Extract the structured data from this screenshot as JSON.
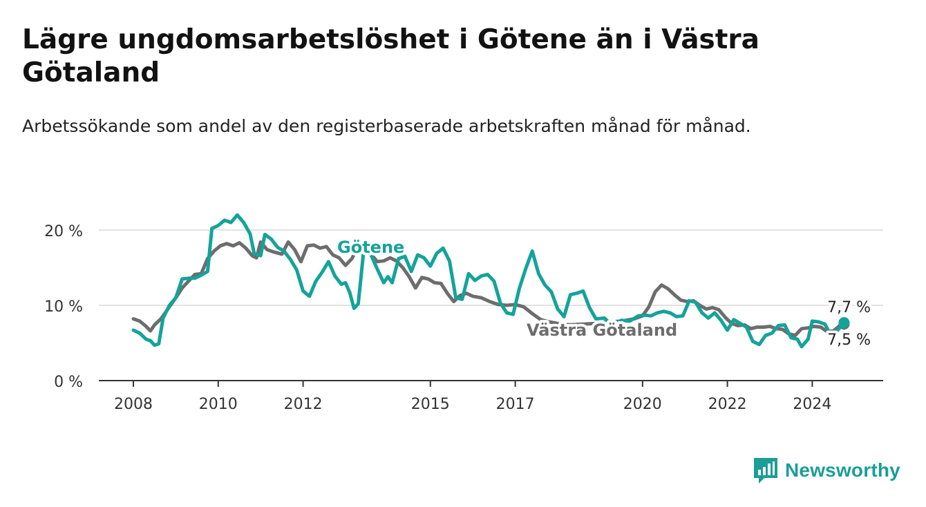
{
  "title": "Lägre ungdomsarbetslöshet i Götene än i Västra Götaland",
  "subtitle": "Arbetssökande som andel av den registerbaserade arbetskraften månad för månad.",
  "brand": {
    "name": "Newsworthy",
    "color": "#1a9e97",
    "icon": "bar-chart-logo-icon"
  },
  "colors": {
    "gotene": "#14a39a",
    "vastra_gotaland": "#6d6d6d",
    "grid": "#d9d9d9",
    "axis": "#333333"
  },
  "chart_data": {
    "type": "line",
    "xlabel": "",
    "ylabel": "",
    "ylim": [
      0,
      22
    ],
    "xlim": [
      2008,
      2026
    ],
    "y_ticks": [
      {
        "value": 0,
        "label": "0 %"
      },
      {
        "value": 10,
        "label": "10 %"
      },
      {
        "value": 20,
        "label": "20 %"
      }
    ],
    "x_ticks": [
      {
        "value": 2008,
        "label": "2008"
      },
      {
        "value": 2010,
        "label": "2010"
      },
      {
        "value": 2012,
        "label": "2012"
      },
      {
        "value": 2015,
        "label": "2015"
      },
      {
        "value": 2017,
        "label": "2017"
      },
      {
        "value": 2020,
        "label": "2020"
      },
      {
        "value": 2022,
        "label": "2022"
      },
      {
        "value": 2024,
        "label": "2024"
      }
    ],
    "grid": true,
    "series": [
      {
        "name": "Västra Götaland",
        "color": "#6d6d6d",
        "label": "Västra Götaland",
        "end_label": "7,5 %",
        "points": [
          [
            2008.0,
            8.2
          ],
          [
            2008.15,
            7.9
          ],
          [
            2008.3,
            7.2
          ],
          [
            2008.4,
            6.6
          ],
          [
            2008.5,
            7.4
          ],
          [
            2008.65,
            8.2
          ],
          [
            2008.8,
            9.4
          ],
          [
            2009.0,
            11.0
          ],
          [
            2009.15,
            12.3
          ],
          [
            2009.3,
            13.2
          ],
          [
            2009.45,
            14.1
          ],
          [
            2009.6,
            14.2
          ],
          [
            2009.75,
            16.2
          ],
          [
            2009.9,
            17.2
          ],
          [
            2010.05,
            17.9
          ],
          [
            2010.2,
            18.2
          ],
          [
            2010.35,
            17.9
          ],
          [
            2010.5,
            18.3
          ],
          [
            2010.65,
            17.6
          ],
          [
            2010.8,
            16.6
          ],
          [
            2010.9,
            16.3
          ],
          [
            2011.0,
            18.4
          ],
          [
            2011.15,
            17.4
          ],
          [
            2011.3,
            17.1
          ],
          [
            2011.5,
            16.8
          ],
          [
            2011.65,
            18.4
          ],
          [
            2011.8,
            17.4
          ],
          [
            2011.95,
            15.8
          ],
          [
            2012.1,
            17.9
          ],
          [
            2012.25,
            18.0
          ],
          [
            2012.4,
            17.6
          ],
          [
            2012.55,
            17.8
          ],
          [
            2012.7,
            16.7
          ],
          [
            2012.85,
            16.3
          ],
          [
            2013.0,
            15.3
          ],
          [
            2013.15,
            16.2
          ],
          [
            2013.3,
            17.8
          ],
          [
            2013.45,
            17.2
          ],
          [
            2013.6,
            16.8
          ],
          [
            2013.75,
            15.8
          ],
          [
            2013.9,
            15.9
          ],
          [
            2014.05,
            16.3
          ],
          [
            2014.2,
            15.9
          ],
          [
            2014.35,
            15.0
          ],
          [
            2014.5,
            13.8
          ],
          [
            2014.65,
            12.3
          ],
          [
            2014.8,
            13.7
          ],
          [
            2014.95,
            13.5
          ],
          [
            2015.1,
            13.0
          ],
          [
            2015.25,
            12.9
          ],
          [
            2015.4,
            11.6
          ],
          [
            2015.55,
            10.5
          ],
          [
            2015.7,
            11.3
          ],
          [
            2015.85,
            11.6
          ],
          [
            2016.0,
            11.2
          ],
          [
            2016.2,
            11.0
          ],
          [
            2016.4,
            10.5
          ],
          [
            2016.6,
            10.1
          ],
          [
            2016.8,
            10.0
          ],
          [
            2017.0,
            10.1
          ],
          [
            2017.2,
            9.8
          ],
          [
            2017.4,
            8.9
          ],
          [
            2017.6,
            8.1
          ],
          [
            2017.8,
            7.8
          ],
          [
            2018.0,
            7.6
          ],
          [
            2018.3,
            7.4
          ],
          [
            2018.6,
            7.5
          ],
          [
            2018.9,
            7.6
          ],
          [
            2019.2,
            7.8
          ],
          [
            2019.5,
            7.9
          ],
          [
            2019.8,
            8.2
          ],
          [
            2020.0,
            8.6
          ],
          [
            2020.15,
            9.8
          ],
          [
            2020.3,
            11.8
          ],
          [
            2020.45,
            12.7
          ],
          [
            2020.6,
            12.2
          ],
          [
            2020.75,
            11.4
          ],
          [
            2020.9,
            10.7
          ],
          [
            2021.05,
            10.5
          ],
          [
            2021.2,
            10.6
          ],
          [
            2021.35,
            10.0
          ],
          [
            2021.5,
            9.5
          ],
          [
            2021.65,
            9.7
          ],
          [
            2021.8,
            9.4
          ],
          [
            2021.95,
            8.4
          ],
          [
            2022.1,
            7.6
          ],
          [
            2022.25,
            7.3
          ],
          [
            2022.4,
            7.4
          ],
          [
            2022.55,
            6.9
          ],
          [
            2022.7,
            7.1
          ],
          [
            2022.85,
            7.1
          ],
          [
            2023.0,
            7.2
          ],
          [
            2023.15,
            6.9
          ],
          [
            2023.3,
            6.8
          ],
          [
            2023.45,
            6.2
          ],
          [
            2023.6,
            6.0
          ],
          [
            2023.75,
            6.9
          ],
          [
            2023.9,
            7.0
          ],
          [
            2024.05,
            7.2
          ],
          [
            2024.2,
            7.1
          ],
          [
            2024.35,
            6.5
          ],
          [
            2024.5,
            6.6
          ],
          [
            2024.65,
            7.3
          ],
          [
            2024.75,
            7.5
          ]
        ]
      },
      {
        "name": "Götene",
        "color": "#14a39a",
        "label": "Götene",
        "end_label": "7,7 %",
        "points": [
          [
            2008.0,
            6.7
          ],
          [
            2008.15,
            6.3
          ],
          [
            2008.3,
            5.5
          ],
          [
            2008.4,
            5.3
          ],
          [
            2008.5,
            4.7
          ],
          [
            2008.6,
            4.9
          ],
          [
            2008.7,
            8.3
          ],
          [
            2008.85,
            10.0
          ],
          [
            2009.0,
            11.0
          ],
          [
            2009.15,
            13.5
          ],
          [
            2009.3,
            13.6
          ],
          [
            2009.45,
            13.6
          ],
          [
            2009.6,
            14.0
          ],
          [
            2009.75,
            14.5
          ],
          [
            2009.85,
            20.2
          ],
          [
            2010.0,
            20.6
          ],
          [
            2010.15,
            21.3
          ],
          [
            2010.3,
            21.0
          ],
          [
            2010.45,
            22.0
          ],
          [
            2010.6,
            21.0
          ],
          [
            2010.75,
            19.5
          ],
          [
            2010.85,
            16.8
          ],
          [
            2011.0,
            16.6
          ],
          [
            2011.1,
            19.4
          ],
          [
            2011.25,
            18.8
          ],
          [
            2011.4,
            17.7
          ],
          [
            2011.55,
            17.2
          ],
          [
            2011.7,
            16.1
          ],
          [
            2011.85,
            14.7
          ],
          [
            2012.0,
            11.9
          ],
          [
            2012.15,
            11.2
          ],
          [
            2012.3,
            13.2
          ],
          [
            2012.45,
            14.4
          ],
          [
            2012.6,
            15.8
          ],
          [
            2012.75,
            13.9
          ],
          [
            2012.9,
            12.8
          ],
          [
            2013.0,
            13.0
          ],
          [
            2013.1,
            11.7
          ],
          [
            2013.2,
            9.6
          ],
          [
            2013.3,
            10.2
          ],
          [
            2013.45,
            18.4
          ],
          [
            2013.6,
            16.7
          ],
          [
            2013.75,
            14.8
          ],
          [
            2013.9,
            13.0
          ],
          [
            2014.0,
            13.8
          ],
          [
            2014.1,
            13.0
          ],
          [
            2014.25,
            16.2
          ],
          [
            2014.4,
            16.5
          ],
          [
            2014.55,
            14.5
          ],
          [
            2014.7,
            16.7
          ],
          [
            2014.85,
            16.3
          ],
          [
            2015.0,
            15.2
          ],
          [
            2015.15,
            16.9
          ],
          [
            2015.3,
            17.6
          ],
          [
            2015.45,
            15.9
          ],
          [
            2015.6,
            11.0
          ],
          [
            2015.75,
            10.8
          ],
          [
            2015.9,
            14.2
          ],
          [
            2016.05,
            13.3
          ],
          [
            2016.2,
            13.9
          ],
          [
            2016.35,
            14.1
          ],
          [
            2016.5,
            13.2
          ],
          [
            2016.65,
            10.3
          ],
          [
            2016.8,
            9.0
          ],
          [
            2016.95,
            8.8
          ],
          [
            2017.1,
            12.3
          ],
          [
            2017.25,
            14.9
          ],
          [
            2017.4,
            17.2
          ],
          [
            2017.55,
            14.2
          ],
          [
            2017.7,
            12.7
          ],
          [
            2017.85,
            11.8
          ],
          [
            2018.0,
            9.5
          ],
          [
            2018.15,
            8.5
          ],
          [
            2018.3,
            11.4
          ],
          [
            2018.45,
            11.6
          ],
          [
            2018.6,
            11.9
          ],
          [
            2018.75,
            9.7
          ],
          [
            2018.9,
            8.2
          ],
          [
            2019.1,
            8.3
          ],
          [
            2019.3,
            7.3
          ],
          [
            2019.5,
            8.0
          ],
          [
            2019.7,
            7.9
          ],
          [
            2019.9,
            8.6
          ],
          [
            2020.05,
            8.7
          ],
          [
            2020.2,
            8.6
          ],
          [
            2020.35,
            9.0
          ],
          [
            2020.5,
            9.2
          ],
          [
            2020.65,
            9.0
          ],
          [
            2020.8,
            8.5
          ],
          [
            2020.95,
            8.6
          ],
          [
            2021.1,
            10.6
          ],
          [
            2021.25,
            10.4
          ],
          [
            2021.4,
            9.0
          ],
          [
            2021.55,
            8.3
          ],
          [
            2021.7,
            9.0
          ],
          [
            2021.85,
            8.0
          ],
          [
            2022.0,
            6.7
          ],
          [
            2022.15,
            8.1
          ],
          [
            2022.3,
            7.6
          ],
          [
            2022.45,
            7.1
          ],
          [
            2022.6,
            5.2
          ],
          [
            2022.75,
            4.8
          ],
          [
            2022.9,
            6.0
          ],
          [
            2023.05,
            6.3
          ],
          [
            2023.2,
            7.3
          ],
          [
            2023.35,
            7.4
          ],
          [
            2023.5,
            5.7
          ],
          [
            2023.65,
            5.5
          ],
          [
            2023.75,
            4.5
          ],
          [
            2023.9,
            5.5
          ],
          [
            2024.0,
            7.9
          ],
          [
            2024.15,
            7.8
          ],
          [
            2024.3,
            7.5
          ],
          [
            2024.45,
            5.9
          ],
          [
            2024.6,
            6.7
          ],
          [
            2024.75,
            7.7
          ]
        ]
      }
    ]
  }
}
